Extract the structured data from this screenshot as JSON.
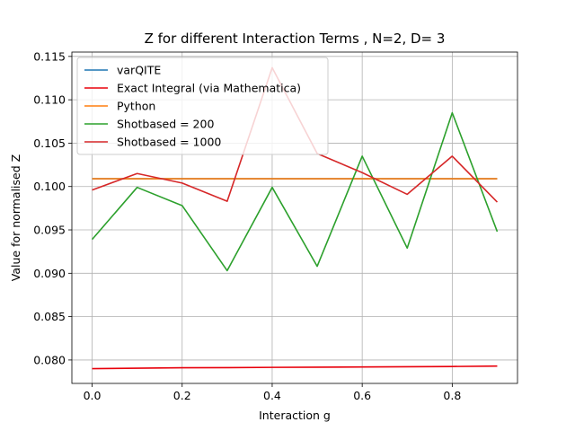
{
  "chart_data": {
    "type": "line",
    "title": "Z for different Interaction Terms , N=2, D= 3",
    "xlabel": "Interaction g",
    "ylabel": "Value for normalised Z",
    "xlim": [
      -0.045,
      0.945
    ],
    "ylim": [
      0.0773,
      0.1155
    ],
    "xticks": [
      0.0,
      0.2,
      0.4,
      0.6,
      0.8
    ],
    "xtick_labels": [
      "0.0",
      "0.2",
      "0.4",
      "0.6",
      "0.8"
    ],
    "yticks": [
      0.08,
      0.085,
      0.09,
      0.095,
      0.1,
      0.105,
      0.11,
      0.115
    ],
    "ytick_labels": [
      "0.080",
      "0.085",
      "0.090",
      "0.095",
      "0.100",
      "0.105",
      "0.110",
      "0.115"
    ],
    "grid": true,
    "legend_position": "upper-left",
    "x": [
      0.0,
      0.1,
      0.2,
      0.3,
      0.4,
      0.5,
      0.6,
      0.7,
      0.8,
      0.9
    ],
    "series": [
      {
        "name": "varQITE",
        "color": "#1f77b4",
        "values": [
          0.1009,
          0.1009,
          0.1009,
          0.1009,
          0.1009,
          0.1009,
          0.1009,
          0.1009,
          0.1009,
          0.1009
        ]
      },
      {
        "name": "Exact Integral (via Mathematica)",
        "color": "#e8000b",
        "values": [
          0.079,
          0.07905,
          0.0791,
          0.07912,
          0.07915,
          0.07917,
          0.0792,
          0.07922,
          0.07925,
          0.0793
        ]
      },
      {
        "name": "Python",
        "color": "#ff7f0e",
        "values": [
          0.1009,
          0.1009,
          0.1009,
          0.1009,
          0.1009,
          0.1009,
          0.1009,
          0.1009,
          0.1009,
          0.1009
        ]
      },
      {
        "name": "Shotbased = 200",
        "color": "#2ca02c",
        "values": [
          0.0939,
          0.0999,
          0.0978,
          0.0903,
          0.0999,
          0.0908,
          0.1035,
          0.0929,
          0.1085,
          0.0948
        ]
      },
      {
        "name": "Shotbased = 1000",
        "color": "#d62728",
        "values": [
          0.0996,
          0.1015,
          0.1004,
          0.0983,
          0.1137,
          0.1038,
          0.1016,
          0.0991,
          0.1035,
          0.0982
        ]
      }
    ]
  }
}
